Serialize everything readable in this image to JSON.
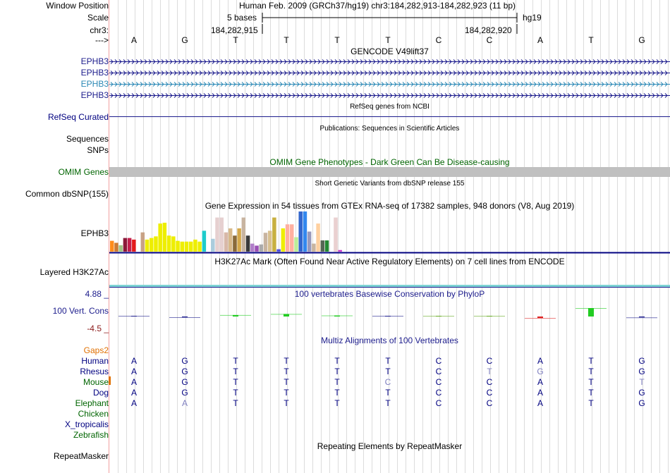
{
  "header": {
    "window_position_label": "Window Position",
    "window_position_value": "Human Feb. 2009 (GRCh37/hg19)   chr3:184,282,913-184,282,923 (11 bp)",
    "scale_label": "Scale",
    "scale_value": "5 bases",
    "assembly": "hg19",
    "chrom_label": "chr3:",
    "coord_left": "184,282,915",
    "coord_right": "184,282,920",
    "strand_label": "--->",
    "reference_bases": [
      "A",
      "G",
      "T",
      "T",
      "T",
      "T",
      "C",
      "C",
      "A",
      "T",
      "G"
    ]
  },
  "gencode": {
    "title": "GENCODE V49lift37",
    "tracks": [
      {
        "name": "EPHB3",
        "color": "#1c1c8c"
      },
      {
        "name": "EPHB3",
        "color": "#1c1c8c"
      },
      {
        "name": "EPHB3",
        "color": "#2b88b5"
      },
      {
        "name": "EPHB3",
        "color": "#1c1c8c"
      }
    ]
  },
  "refseq": {
    "title": "RefSeq genes from NCBI",
    "label": "RefSeq Curated",
    "color": "#1c1c8c"
  },
  "publications": {
    "title": "Publications: Sequences in Scientific Articles",
    "label_sequences": "Sequences",
    "label_snps": "SNPs"
  },
  "omim": {
    "title": "OMIM Gene Phenotypes - Dark Green Can Be Disease-causing",
    "label": "OMIM Genes",
    "color": "#006400",
    "bar_color": "#c0c0c0"
  },
  "dbsnp": {
    "title": "Short Genetic Variants from dbSNP release 155",
    "label": "Common dbSNP(155)"
  },
  "gtex": {
    "title": "Gene Expression in 54 tissues from GTEx RNA-seq of 17382 samples, 948 donors (V8, Aug 2019)",
    "label": "EPHB3",
    "bars": [
      {
        "v": 0.27,
        "c": "#ff8c1a"
      },
      {
        "v": 0.22,
        "c": "#cc7a33"
      },
      {
        "v": 0.16,
        "c": "#9fc485"
      },
      {
        "v": 0.34,
        "c": "#8b1a3a"
      },
      {
        "v": 0.34,
        "c": "#c21f4d"
      },
      {
        "v": 0.3,
        "c": "#e31a1c"
      },
      {
        "v": 0.0,
        "c": "#ffffff"
      },
      {
        "v": 0.48,
        "c": "#c8a286"
      },
      {
        "v": 0.3,
        "c": "#eeee00"
      },
      {
        "v": 0.34,
        "c": "#eeee00"
      },
      {
        "v": 0.38,
        "c": "#eeee00"
      },
      {
        "v": 0.7,
        "c": "#eeee00"
      },
      {
        "v": 0.72,
        "c": "#eeee00"
      },
      {
        "v": 0.4,
        "c": "#eeee00"
      },
      {
        "v": 0.38,
        "c": "#eeee00"
      },
      {
        "v": 0.27,
        "c": "#eeee00"
      },
      {
        "v": 0.25,
        "c": "#eeee00"
      },
      {
        "v": 0.25,
        "c": "#eeee00"
      },
      {
        "v": 0.25,
        "c": "#eeee00"
      },
      {
        "v": 0.3,
        "c": "#eeee00"
      },
      {
        "v": 0.25,
        "c": "#eeee00"
      },
      {
        "v": 0.52,
        "c": "#1ecccc"
      },
      {
        "v": 0.0,
        "c": "#ffffff"
      },
      {
        "v": 0.32,
        "c": "#aaccdd"
      },
      {
        "v": 0.85,
        "c": "#e6d0d0"
      },
      {
        "v": 0.85,
        "c": "#e6d0d0"
      },
      {
        "v": 0.48,
        "c": "#d8b8a8"
      },
      {
        "v": 0.58,
        "c": "#d8b888"
      },
      {
        "v": 0.4,
        "c": "#8a6a3a"
      },
      {
        "v": 0.58,
        "c": "#d4a84a"
      },
      {
        "v": 0.85,
        "c": "#c8b4a0"
      },
      {
        "v": 0.4,
        "c": "#3a3a3a"
      },
      {
        "v": 0.2,
        "c": "#b07ec8"
      },
      {
        "v": 0.15,
        "c": "#9a50b4"
      },
      {
        "v": 0.18,
        "c": "#aaaaaa"
      },
      {
        "v": 0.47,
        "c": "#c8b4a0"
      },
      {
        "v": 0.52,
        "c": "#d8c090"
      },
      {
        "v": 0.85,
        "c": "#c8b040"
      },
      {
        "v": 0.06,
        "c": "#5050e0"
      },
      {
        "v": 0.58,
        "c": "#eeee00"
      },
      {
        "v": 0.68,
        "c": "#ffb0a0"
      },
      {
        "v": 0.68,
        "c": "#ffb0a0"
      },
      {
        "v": 0.36,
        "c": "#bbee99"
      },
      {
        "v": 1.0,
        "c": "#3366cc"
      },
      {
        "v": 1.0,
        "c": "#3388ee"
      },
      {
        "v": 0.5,
        "c": "#9999bb"
      },
      {
        "v": 0.2,
        "c": "#c8b4a0"
      },
      {
        "v": 0.7,
        "c": "#ffd0a0"
      },
      {
        "v": 0.28,
        "c": "#556655"
      },
      {
        "v": 0.28,
        "c": "#228833"
      },
      {
        "v": 0.0,
        "c": "#ffffff"
      },
      {
        "v": 0.85,
        "c": "#ead0d0"
      },
      {
        "v": 0.04,
        "c": "#cc33cc"
      }
    ]
  },
  "h3k27ac": {
    "title": "H3K27Ac Mark (Often Found Near Active Regulatory Elements) on 7 cell lines from ENCODE",
    "label": "Layered H3K27Ac",
    "color": "#7ed4d4"
  },
  "phylop": {
    "title": "100 vertebrates Basewise Conservation by PhyloP",
    "label": "100 Vert. Cons",
    "max_label": "4.88 _",
    "min_label": "-4.5 _",
    "scores": [
      0.0,
      -0.15,
      0.35,
      0.6,
      0.25,
      0.0,
      0.1,
      0.05,
      -0.35,
      2.0,
      -0.2
    ]
  },
  "multiz": {
    "title": "Multiz Alignments of 100 Vertebrates",
    "gaps_label": "Gaps2",
    "species": [
      {
        "name": "Human",
        "color": "#000080",
        "bases": [
          "A",
          "G",
          "T",
          "T",
          "T",
          "T",
          "C",
          "C",
          "A",
          "T",
          "G"
        ]
      },
      {
        "name": "Rhesus",
        "color": "#000080",
        "bases": [
          "A",
          "G",
          "T",
          "T",
          "T",
          "T",
          "C",
          "T",
          "G",
          "T",
          "G"
        ],
        "faint": [
          7,
          8
        ]
      },
      {
        "name": "Mouse",
        "color": "#006400",
        "bases": [
          "A",
          "G",
          "T",
          "T",
          "T",
          "C",
          "C",
          "C",
          "A",
          "T",
          "T"
        ],
        "faint": [
          5,
          10
        ]
      },
      {
        "name": "Dog",
        "color": "#000080",
        "bases": [
          "A",
          "G",
          "T",
          "T",
          "T",
          "T",
          "C",
          "C",
          "A",
          "T",
          "G"
        ]
      },
      {
        "name": "Elephant",
        "color": "#006400",
        "bases": [
          "A",
          "A",
          "T",
          "T",
          "T",
          "T",
          "C",
          "C",
          "A",
          "T",
          "G"
        ],
        "faint": [
          1
        ]
      },
      {
        "name": "Chicken",
        "color": "#006400",
        "bases": []
      },
      {
        "name": "X_tropicalis",
        "color": "#000080",
        "bases": []
      },
      {
        "name": "Zebrafish",
        "color": "#006400",
        "bases": []
      }
    ]
  },
  "repeatmasker": {
    "title": "Repeating Elements by RepeatMasker",
    "label": "RepeatMasker"
  }
}
